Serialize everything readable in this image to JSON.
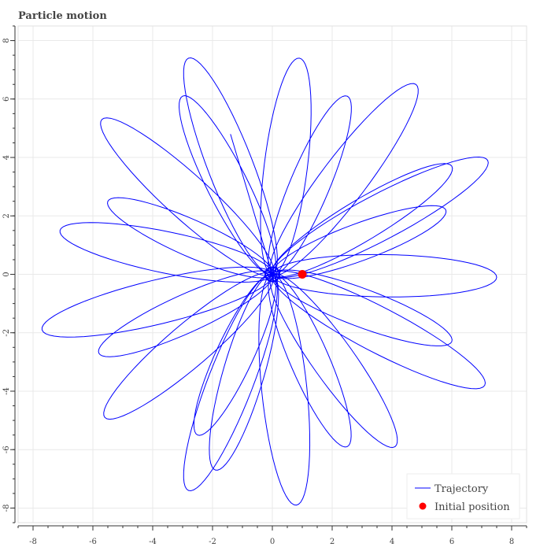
{
  "chart_data": {
    "type": "line",
    "title": "Particle motion",
    "xlabel": "",
    "ylabel": "",
    "xlim": [
      -8.5,
      8.5
    ],
    "ylim": [
      -8.5,
      8.5
    ],
    "x_ticks": [
      -8,
      -6,
      -4,
      -2,
      0,
      2,
      4,
      6,
      8
    ],
    "y_ticks": [
      -8,
      -6,
      -4,
      -2,
      0,
      2,
      4,
      6,
      8
    ],
    "grid": true,
    "legend_placement": "bottom-right",
    "series": [
      {
        "name": "Trajectory",
        "color": "#0000ff",
        "kind": "rosette of elongated elliptical loops centered at the origin",
        "loop_peaks": [
          [
            7.5,
            -0.1
          ],
          [
            7.1,
            -3.8
          ],
          [
            6.0,
            -2.3
          ],
          [
            4.1,
            -5.9
          ],
          [
            2.5,
            -5.9
          ],
          [
            0.8,
            -7.9
          ],
          [
            -1.9,
            -6.7
          ],
          [
            -2.8,
            -7.4
          ],
          [
            -2.5,
            -5.5
          ],
          [
            -5.6,
            -4.9
          ],
          [
            -5.8,
            -2.7
          ],
          [
            -7.7,
            -1.9
          ],
          [
            -7.1,
            1.5
          ],
          [
            -5.5,
            2.5
          ],
          [
            -5.7,
            5.3
          ],
          [
            -3.0,
            6.1
          ],
          [
            -2.8,
            7.4
          ],
          [
            0.9,
            7.4
          ],
          [
            2.5,
            6.1
          ],
          [
            4.8,
            6.5
          ],
          [
            6.0,
            3.7
          ],
          [
            7.2,
            3.9
          ],
          [
            5.8,
            2.2
          ]
        ],
        "end_point": [
          -1.4,
          4.8
        ]
      },
      {
        "name": "Initial position",
        "color": "#ff0000",
        "points": [
          [
            1.0,
            0.0
          ]
        ]
      }
    ]
  }
}
